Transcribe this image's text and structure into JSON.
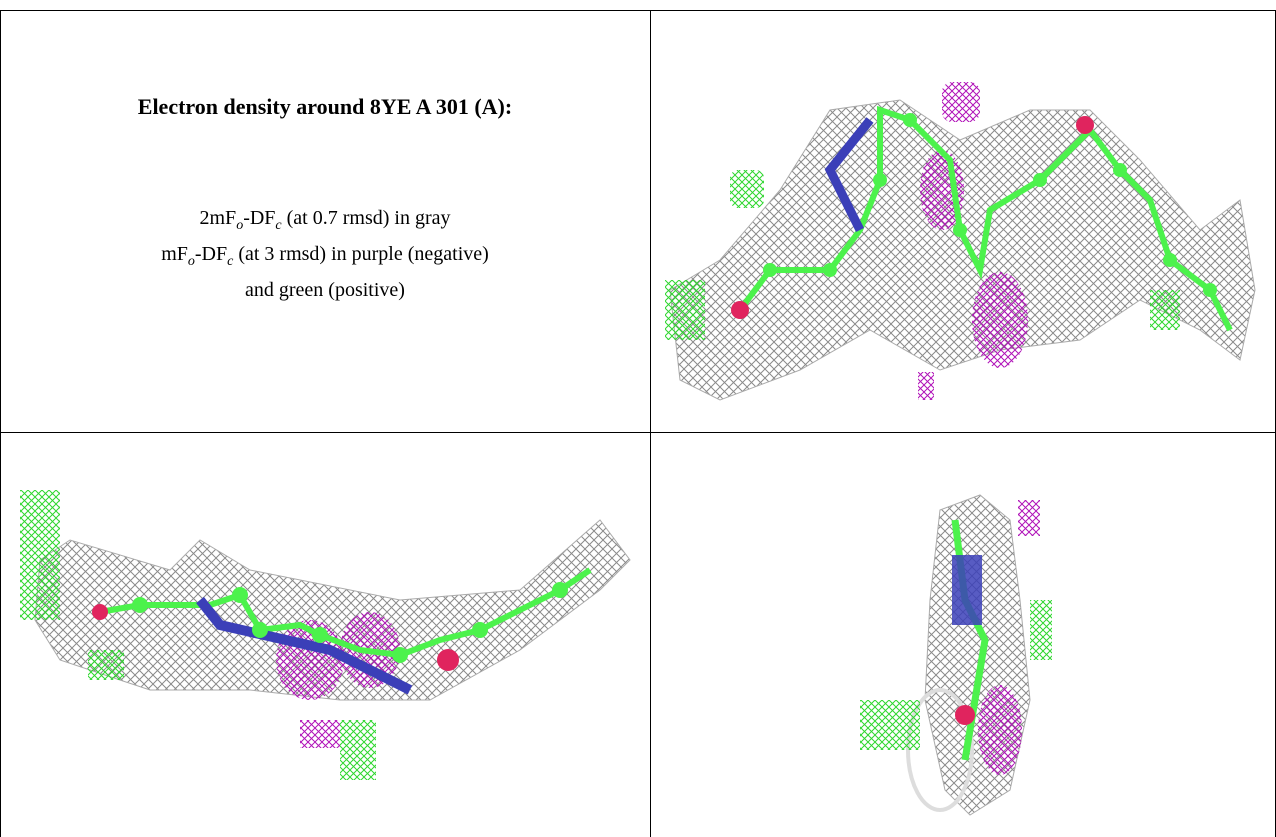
{
  "title": "Electron density around 8YE A 301 (A):",
  "legend": [
    [
      {
        "text": "2mF"
      },
      {
        "sub": "o"
      },
      {
        "text": "-DF"
      },
      {
        "sub": "c"
      },
      {
        "text": " (at 0.7 rmsd) in gray"
      }
    ],
    [
      {
        "text": "mF"
      },
      {
        "sub": "o"
      },
      {
        "text": "-DF"
      },
      {
        "sub": "c"
      },
      {
        "text": " (at 3 rmsd) in purple (negative)"
      }
    ],
    [
      {
        "text": "and green (positive)"
      }
    ]
  ]
}
